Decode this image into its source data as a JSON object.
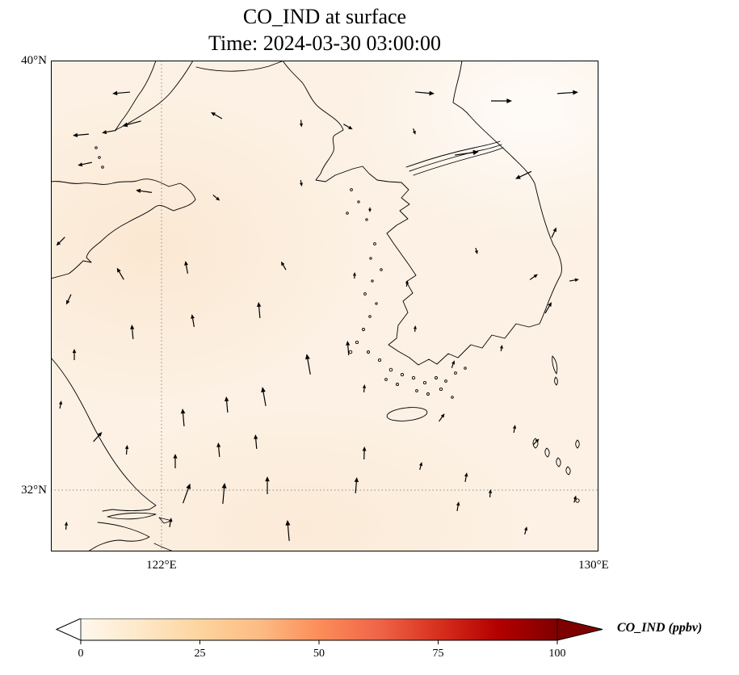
{
  "figure": {
    "title_line1": "CO_IND at surface",
    "title_line2": "Time: 2024-03-30 03:00:00"
  },
  "map": {
    "yticks": [
      {
        "label": "40°N"
      },
      {
        "label": "32°N"
      }
    ],
    "xticks": [
      {
        "label": "122°E"
      },
      {
        "label": "130°E"
      }
    ],
    "background_color": "#fcf1e4",
    "gridline_style": "dotted gray at 122°E and 32°N"
  },
  "colorbar": {
    "label": "CO_IND (ppbv)",
    "ticks": [
      "0",
      "25",
      "50",
      "75",
      "100"
    ],
    "stops": [
      {
        "p": 0,
        "c": "#fff7ec"
      },
      {
        "p": 12.5,
        "c": "#fee8c8"
      },
      {
        "p": 25,
        "c": "#fdd49e"
      },
      {
        "p": 37.5,
        "c": "#fdbb84"
      },
      {
        "p": 50,
        "c": "#fc8d59"
      },
      {
        "p": 62.5,
        "c": "#ef6548"
      },
      {
        "p": 75,
        "c": "#d7301f"
      },
      {
        "p": 87.5,
        "c": "#b30000"
      },
      {
        "p": 100,
        "c": "#7f0000"
      }
    ],
    "under_color": "#ffffff",
    "over_color": "#7f0000"
  },
  "chart_data": {
    "type": "heatmap",
    "title": "CO_IND at surface",
    "subtitle": "Time: 2024-03-30 03:00:00",
    "variable": "CO_IND",
    "units": "ppbv",
    "level": "surface",
    "time": "2024-03-30 03:00:00",
    "extent": {
      "lon_min": 120.0,
      "lon_max": 130.1,
      "lat_min": 30.9,
      "lat_max": 40.0
    },
    "xticks": [
      {
        "lon": 122,
        "label": "122°E"
      },
      {
        "lon": 130,
        "label": "130°E"
      }
    ],
    "yticks": [
      {
        "lat": 40,
        "label": "40°N"
      },
      {
        "lat": 32,
        "label": "32°N"
      }
    ],
    "grid": "dotted",
    "colorbar": {
      "orientation": "horizontal",
      "ticks": [
        0,
        25,
        50,
        75,
        100
      ],
      "label": "CO_IND (ppbv)",
      "extend": "both",
      "colormap": "OrRd"
    },
    "field_summary": "near-uniform low CO_IND values (~0-5 ppbv, pale cream) over the Yellow Sea / Korea domain",
    "overlays": [
      "coastlines",
      "wind vector arrows (quiver)"
    ],
    "wind_vectors_units": "x,y = px in 678x608 map viewport; a = direction deg CCW from east; l = arrow length px",
    "wind_vectors": [
      {
        "x": 87,
        "y": 40,
        "a": 185,
        "l": 22
      },
      {
        "x": 100,
        "y": 78,
        "a": 195,
        "l": 24
      },
      {
        "x": 72,
        "y": 88,
        "a": 190,
        "l": 18
      },
      {
        "x": 37,
        "y": 92,
        "a": 185,
        "l": 20
      },
      {
        "x": 42,
        "y": 128,
        "a": 192,
        "l": 18
      },
      {
        "x": 205,
        "y": 68,
        "a": 150,
        "l": 16
      },
      {
        "x": 310,
        "y": 78,
        "a": 275,
        "l": 9
      },
      {
        "x": 368,
        "y": 82,
        "a": 330,
        "l": 13
      },
      {
        "x": 450,
        "y": 88,
        "a": 290,
        "l": 8
      },
      {
        "x": 463,
        "y": 40,
        "a": 355,
        "l": 24
      },
      {
        "x": 558,
        "y": 50,
        "a": 0,
        "l": 26
      },
      {
        "x": 640,
        "y": 40,
        "a": 4,
        "l": 26
      },
      {
        "x": 515,
        "y": 115,
        "a": 8,
        "l": 30
      },
      {
        "x": 585,
        "y": 142,
        "a": 205,
        "l": 22
      },
      {
        "x": 623,
        "y": 213,
        "a": 65,
        "l": 14
      },
      {
        "x": 115,
        "y": 162,
        "a": 172,
        "l": 20
      },
      {
        "x": 205,
        "y": 170,
        "a": 320,
        "l": 11
      },
      {
        "x": 310,
        "y": 152,
        "a": 280,
        "l": 8
      },
      {
        "x": 395,
        "y": 185,
        "a": 270,
        "l": 6
      },
      {
        "x": 527,
        "y": 236,
        "a": 285,
        "l": 8
      },
      {
        "x": 598,
        "y": 268,
        "a": 35,
        "l": 12
      },
      {
        "x": 648,
        "y": 272,
        "a": 10,
        "l": 12
      },
      {
        "x": 12,
        "y": 224,
        "a": 225,
        "l": 15
      },
      {
        "x": 86,
        "y": 264,
        "a": 120,
        "l": 17
      },
      {
        "x": 168,
        "y": 256,
        "a": 100,
        "l": 16
      },
      {
        "x": 258,
        "y": 309,
        "a": 95,
        "l": 20
      },
      {
        "x": 288,
        "y": 254,
        "a": 120,
        "l": 12
      },
      {
        "x": 376,
        "y": 266,
        "a": 88,
        "l": 8
      },
      {
        "x": 441,
        "y": 276,
        "a": 80,
        "l": 8
      },
      {
        "x": 22,
        "y": 296,
        "a": 245,
        "l": 14
      },
      {
        "x": 29,
        "y": 364,
        "a": 90,
        "l": 14
      },
      {
        "x": 101,
        "y": 336,
        "a": 95,
        "l": 18
      },
      {
        "x": 176,
        "y": 322,
        "a": 100,
        "l": 16
      },
      {
        "x": 319,
        "y": 376,
        "a": 100,
        "l": 26
      },
      {
        "x": 368,
        "y": 356,
        "a": 95,
        "l": 18
      },
      {
        "x": 451,
        "y": 332,
        "a": 85,
        "l": 8
      },
      {
        "x": 498,
        "y": 376,
        "a": 70,
        "l": 10
      },
      {
        "x": 558,
        "y": 356,
        "a": 80,
        "l": 8
      },
      {
        "x": 616,
        "y": 306,
        "a": 60,
        "l": 16
      },
      {
        "x": 12,
        "y": 426,
        "a": 80,
        "l": 10
      },
      {
        "x": 58,
        "y": 466,
        "a": 48,
        "l": 16
      },
      {
        "x": 94,
        "y": 482,
        "a": 85,
        "l": 12
      },
      {
        "x": 164,
        "y": 442,
        "a": 95,
        "l": 22
      },
      {
        "x": 218,
        "y": 426,
        "a": 95,
        "l": 20
      },
      {
        "x": 264,
        "y": 416,
        "a": 100,
        "l": 24
      },
      {
        "x": 388,
        "y": 406,
        "a": 85,
        "l": 10
      },
      {
        "x": 484,
        "y": 442,
        "a": 55,
        "l": 12
      },
      {
        "x": 574,
        "y": 456,
        "a": 80,
        "l": 10
      },
      {
        "x": 601,
        "y": 472,
        "a": 45,
        "l": 10
      },
      {
        "x": 154,
        "y": 496,
        "a": 90,
        "l": 18
      },
      {
        "x": 208,
        "y": 482,
        "a": 95,
        "l": 18
      },
      {
        "x": 254,
        "y": 472,
        "a": 95,
        "l": 18
      },
      {
        "x": 388,
        "y": 486,
        "a": 88,
        "l": 16
      },
      {
        "x": 458,
        "y": 502,
        "a": 75,
        "l": 10
      },
      {
        "x": 514,
        "y": 516,
        "a": 80,
        "l": 12
      },
      {
        "x": 168,
        "y": 536,
        "a": 70,
        "l": 26
      },
      {
        "x": 214,
        "y": 536,
        "a": 85,
        "l": 26
      },
      {
        "x": 268,
        "y": 526,
        "a": 90,
        "l": 22
      },
      {
        "x": 378,
        "y": 526,
        "a": 85,
        "l": 20
      },
      {
        "x": 504,
        "y": 552,
        "a": 80,
        "l": 12
      },
      {
        "x": 544,
        "y": 536,
        "a": 85,
        "l": 10
      },
      {
        "x": 649,
        "y": 543,
        "a": 75,
        "l": 9
      },
      {
        "x": 19,
        "y": 576,
        "a": 85,
        "l": 10
      },
      {
        "x": 148,
        "y": 572,
        "a": 80,
        "l": 12
      },
      {
        "x": 294,
        "y": 582,
        "a": 95,
        "l": 26
      },
      {
        "x": 588,
        "y": 582,
        "a": 75,
        "l": 10
      }
    ]
  }
}
